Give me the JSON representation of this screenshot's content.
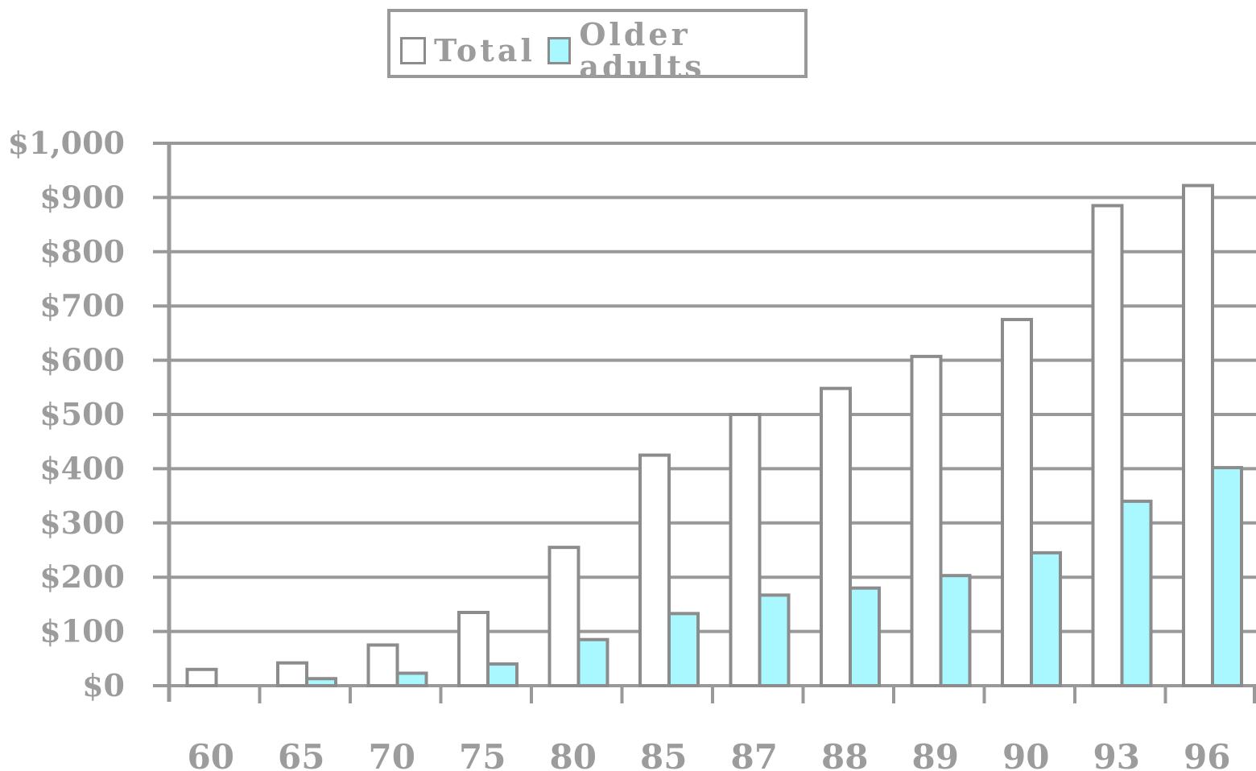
{
  "chart_data": {
    "type": "bar",
    "title": "",
    "xlabel": "",
    "ylabel": "",
    "categories": [
      "60",
      "65",
      "70",
      "75",
      "80",
      "85",
      "87",
      "88",
      "89",
      "90",
      "93",
      "96"
    ],
    "series": [
      {
        "name": "Total",
        "color": "#ffffff",
        "values": [
          30,
          42,
          75,
          135,
          255,
          425,
          500,
          548,
          607,
          675,
          885,
          922
        ]
      },
      {
        "name": "Older adults",
        "color": "#a9f8ff",
        "values": [
          0,
          13,
          23,
          40,
          85,
          133,
          167,
          180,
          203,
          245,
          340,
          402
        ]
      }
    ],
    "ylim": [
      0,
      1000
    ],
    "yticks": [
      0,
      100,
      200,
      300,
      400,
      500,
      600,
      700,
      800,
      900,
      1000
    ],
    "ytick_labels": [
      "$0",
      "$100",
      "$200",
      "$300",
      "$400",
      "$500",
      "$600",
      "$700",
      "$800",
      "$900",
      "$1,000"
    ],
    "grid": true,
    "legend_position": "top-center",
    "colors": {
      "axis": "#999999",
      "text": "#9c9c9c",
      "bar_border": "#8c8c8c"
    }
  }
}
